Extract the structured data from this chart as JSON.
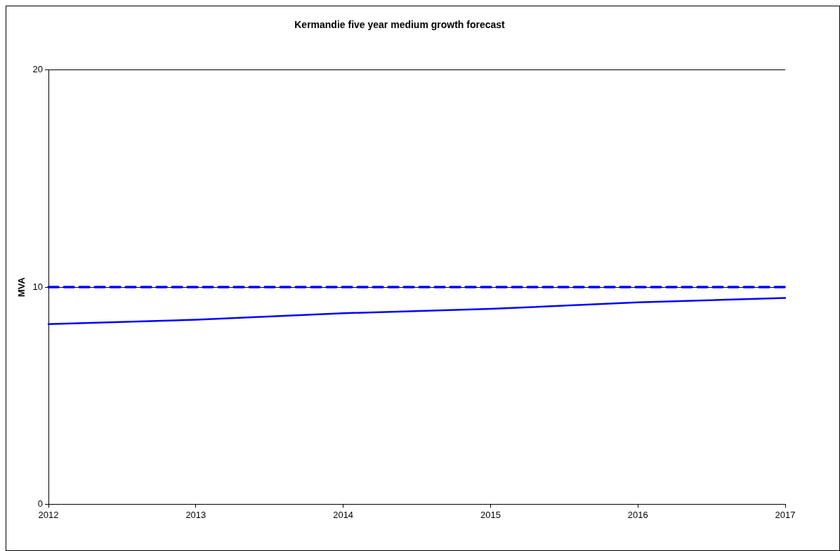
{
  "chart_data": {
    "type": "line",
    "title": "Kermandie five year medium growth forecast",
    "ylabel": "MVA",
    "x": [
      2012,
      2013,
      2014,
      2015,
      2016,
      2017
    ],
    "series": [
      {
        "color": "#0000ff",
        "values": [
          8.3,
          8.5,
          8.8,
          9.0,
          9.3,
          9.5
        ],
        "line_style": "solid"
      },
      {
        "color": "#0000ff",
        "values": [
          10,
          10,
          10,
          10,
          10,
          10
        ],
        "line_style": "dashed"
      }
    ],
    "xlim": [
      2012,
      2017
    ],
    "xticks": [
      2012,
      2013,
      2014,
      2015,
      2016,
      2017
    ],
    "ylim": [
      0,
      20
    ],
    "yticks": [
      0,
      10,
      20
    ],
    "grid": "y",
    "legend": false,
    "marker": "none"
  }
}
